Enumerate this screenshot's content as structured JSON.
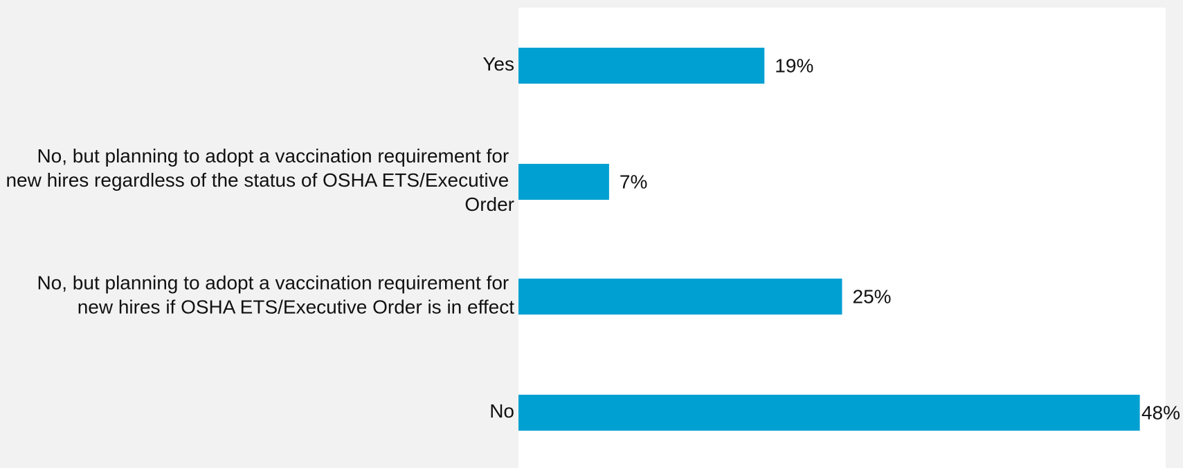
{
  "chart_data": {
    "type": "bar",
    "orientation": "horizontal",
    "categories": [
      "Yes",
      "No, but planning to adopt a vaccination requirement for new hires regardless of the status of OSHA ETS/Executive Order",
      "No, but planning to adopt a vaccination requirement for new hires if OSHA ETS/Executive Order is in effect",
      "No"
    ],
    "values": [
      19,
      7,
      25,
      48
    ],
    "value_labels": [
      "19%",
      "7%",
      "25%",
      "48%"
    ],
    "color": "#00a0d2",
    "xlim": [
      0,
      50
    ]
  }
}
